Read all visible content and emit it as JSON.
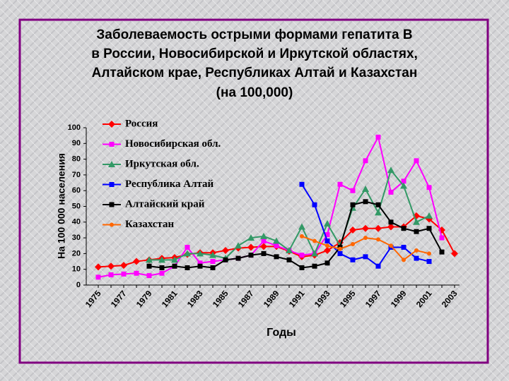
{
  "chart_data": {
    "type": "line",
    "title": [
      "Заболеваемость острыми формами гепатита В",
      "в России, Новосибирской и Иркутской областях,",
      "Алтайском крае, Республиках Алтай и Казахстан"
    ],
    "subtitle": "(на 100,000)",
    "y_label": "На 100 000 населения",
    "x_label": "Годы",
    "categories": [
      "1975",
      null,
      "1977",
      null,
      "1979",
      null,
      "1981",
      null,
      "1983",
      null,
      "1985",
      null,
      "1987",
      null,
      "1989",
      null,
      "1991",
      null,
      "1993",
      null,
      "1995",
      null,
      "1997",
      null,
      "1999",
      null,
      "2001",
      null,
      "2003"
    ],
    "ylim": [
      0,
      100
    ],
    "yticks": [
      0,
      10,
      20,
      30,
      40,
      50,
      60,
      70,
      80,
      90,
      100
    ],
    "grid": false,
    "legend": "upper left",
    "series": [
      {
        "name": "Россия",
        "color": "#ff0000",
        "marker": "diamond",
        "values": [
          11.5,
          12,
          12.5,
          15,
          16,
          17,
          17.5,
          19.5,
          20.5,
          20.5,
          22,
          23.5,
          24,
          24.5,
          24.5,
          21.5,
          18,
          19,
          22,
          27,
          35,
          36,
          36,
          37,
          37,
          44,
          42,
          35,
          20
        ]
      },
      {
        "name": "Новосибирская обл.",
        "color": "#ff00ff",
        "marker": "square",
        "values": [
          5,
          6.5,
          7,
          7.5,
          6,
          7.5,
          12,
          24,
          14,
          15,
          16,
          17,
          19,
          28,
          25,
          22,
          19,
          20,
          32,
          64,
          60,
          79,
          94,
          59,
          66,
          79,
          62,
          30,
          null
        ]
      },
      {
        "name": "Иркутская обл.",
        "color": "#339966",
        "marker": "triangle",
        "values": [
          null,
          null,
          null,
          null,
          16,
          16,
          16,
          20,
          20,
          19,
          17,
          25,
          30,
          31,
          28,
          22,
          37,
          20,
          39,
          25,
          49,
          61,
          46,
          73,
          63,
          40,
          44,
          null,
          null
        ]
      },
      {
        "name": "Республика Алтай",
        "color": "#0000ff",
        "marker": "square",
        "values": [
          null,
          null,
          null,
          null,
          null,
          null,
          null,
          null,
          null,
          null,
          null,
          null,
          null,
          null,
          null,
          null,
          64,
          51,
          28,
          20,
          16,
          18,
          12,
          24,
          24,
          17,
          15,
          null,
          null
        ]
      },
      {
        "name": "Алтайский край",
        "color": "#000000",
        "marker": "square",
        "values": [
          null,
          null,
          null,
          null,
          12,
          11,
          12,
          11,
          12,
          11,
          16,
          17,
          19,
          20,
          18,
          16,
          11,
          12,
          14,
          24,
          51,
          53,
          51,
          40,
          36,
          34,
          36,
          21,
          null
        ]
      },
      {
        "name": "Казахстан",
        "color": "#ff6600",
        "marker": "circle",
        "values": [
          null,
          null,
          null,
          null,
          null,
          null,
          null,
          null,
          null,
          null,
          null,
          null,
          null,
          null,
          null,
          null,
          31,
          28,
          25,
          23,
          26,
          30,
          29,
          25,
          16,
          22,
          20,
          null,
          null
        ]
      }
    ]
  }
}
